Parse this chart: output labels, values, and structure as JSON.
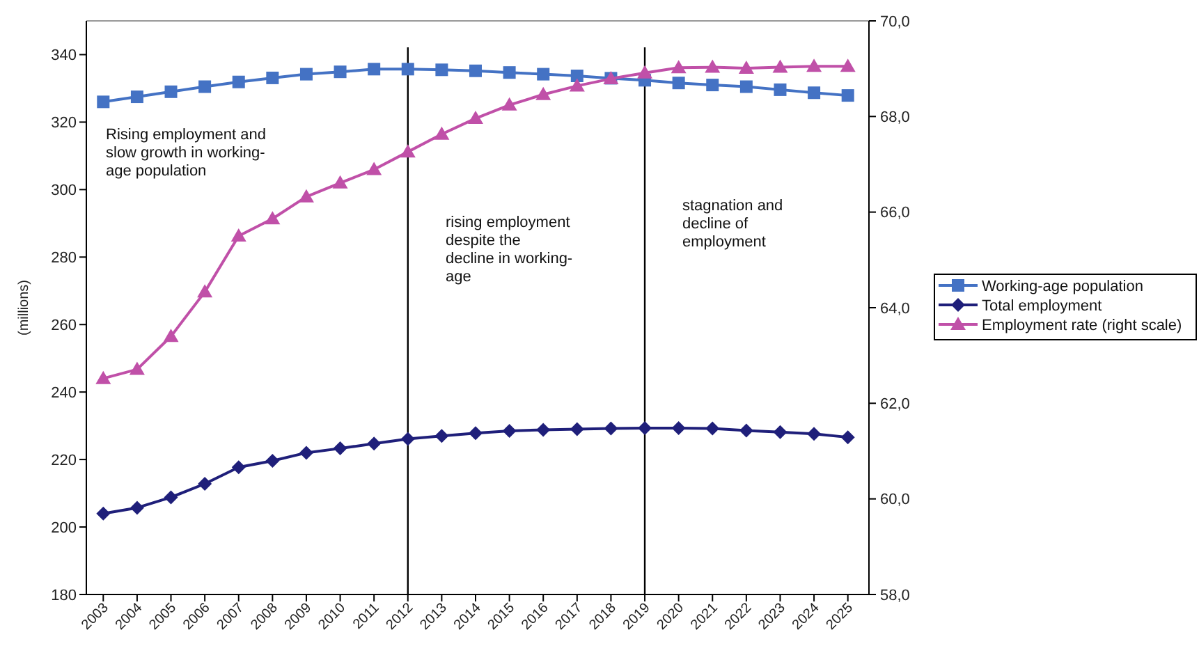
{
  "chart_data": {
    "type": "line",
    "ylabel": "(millions)",
    "categories": [
      "2003",
      "2004",
      "2005",
      "2006",
      "2007",
      "2008",
      "2009",
      "2010",
      "2011",
      "2012",
      "2013",
      "2014",
      "2015",
      "2016",
      "2017",
      "2018",
      "2019",
      "2020",
      "2021",
      "2022",
      "2023",
      "2024",
      "2025"
    ],
    "series": [
      {
        "name": "Working-age population",
        "color": "#4472c4",
        "marker": "square",
        "values": [
          326.0,
          327.5,
          329.0,
          330.5,
          331.9,
          333.1,
          334.2,
          334.9,
          335.7,
          335.7,
          335.5,
          335.2,
          334.7,
          334.2,
          333.7,
          333.0,
          332.4,
          331.6,
          331.0,
          330.5,
          329.6,
          328.7,
          327.9
        ]
      },
      {
        "name": "Total employment",
        "color": "#1f1f7a",
        "marker": "diamond",
        "values": [
          204.0,
          205.7,
          208.8,
          212.8,
          217.7,
          219.6,
          222.0,
          223.3,
          224.7,
          226.1,
          227.0,
          227.8,
          228.5,
          228.8,
          229.0,
          229.2,
          229.3,
          229.3,
          229.2,
          228.6,
          228.1,
          227.6,
          226.6
        ]
      },
      {
        "name": "Employment rate (right scale)",
        "color": "#c050a8",
        "marker": "triangle",
        "axis": "y2",
        "values": [
          62.52,
          62.71,
          63.4,
          64.33,
          65.5,
          65.86,
          66.32,
          66.61,
          66.89,
          67.26,
          67.63,
          67.96,
          68.24,
          68.46,
          68.64,
          68.79,
          68.91,
          69.02,
          69.03,
          69.01,
          69.03,
          69.05,
          69.05
        ]
      }
    ],
    "ylim": [
      180,
      350
    ],
    "yticks": [
      180,
      200,
      220,
      240,
      260,
      280,
      300,
      320,
      340
    ],
    "y2lim": [
      58,
      70
    ],
    "y2ticks": [
      {
        "value": 58,
        "label": "58,0"
      },
      {
        "value": 60,
        "label": "60,0"
      },
      {
        "value": 62,
        "label": "62,0"
      },
      {
        "value": 64,
        "label": "64,0"
      },
      {
        "value": 66,
        "label": "66,0"
      },
      {
        "value": 68,
        "label": "68,0"
      },
      {
        "value": 70,
        "label": "70,0"
      }
    ],
    "ref_lines": [
      {
        "axis": "x",
        "value": "2012",
        "color": "#000000"
      },
      {
        "axis": "x",
        "value": "2019",
        "color": "#000000"
      }
    ],
    "annotations": [
      "Rising employment and\nslow growth in working-\nage population",
      "rising employment\ndespite the\ndecline in working-\nage",
      "stagnation and\ndecline of\nemployment"
    ],
    "legend": "right",
    "grid": false
  }
}
